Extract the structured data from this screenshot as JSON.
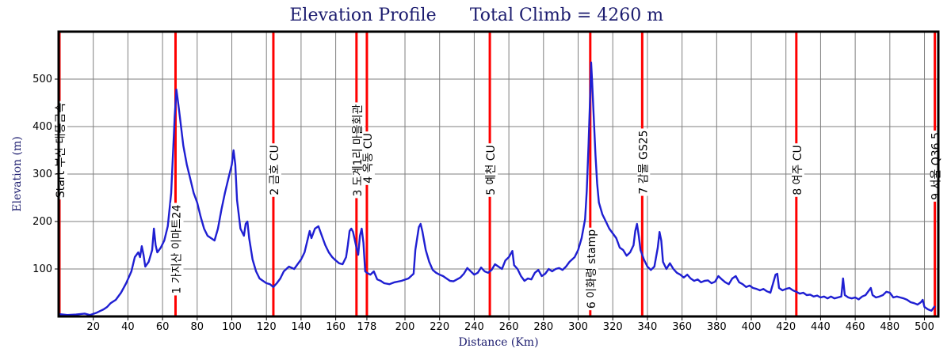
{
  "chart_data": {
    "type": "line",
    "title": "Elevation Profile",
    "subtitle": "Total Climb = 4260 m",
    "xlabel": "Distance (Km)",
    "ylabel": "Elevation (m)",
    "xlim": [
      0,
      508
    ],
    "ylim": [
      0,
      600
    ],
    "x_ticks": [
      20,
      40,
      60,
      80,
      100,
      120,
      140,
      160,
      178,
      200,
      220,
      240,
      260,
      280,
      300,
      320,
      340,
      360,
      380,
      400,
      420,
      440,
      460,
      480,
      500
    ],
    "y_ticks": [
      100,
      200,
      300,
      400,
      500
    ],
    "grid": true,
    "colors": {
      "line": "#1f1fd2",
      "checkpoint": "#ff0000",
      "frame": "#000000",
      "grid": "#7f7f7f",
      "title": "#1b1b6e"
    },
    "series": [
      {
        "values": [
          [
            0,
            5
          ],
          [
            5,
            3
          ],
          [
            10,
            4
          ],
          [
            15,
            6
          ],
          [
            18,
            3
          ],
          [
            22,
            8
          ],
          [
            26,
            15
          ],
          [
            28,
            20
          ],
          [
            30,
            28
          ],
          [
            33,
            35
          ],
          [
            36,
            50
          ],
          [
            39,
            70
          ],
          [
            42,
            95
          ],
          [
            44,
            125
          ],
          [
            46,
            135
          ],
          [
            47,
            125
          ],
          [
            48,
            148
          ],
          [
            49,
            130
          ],
          [
            50,
            105
          ],
          [
            52,
            115
          ],
          [
            54,
            140
          ],
          [
            55,
            185
          ],
          [
            56,
            150
          ],
          [
            57,
            135
          ],
          [
            59,
            145
          ],
          [
            61,
            160
          ],
          [
            63,
            190
          ],
          [
            65,
            260
          ],
          [
            66,
            340
          ],
          [
            67,
            420
          ],
          [
            68,
            478
          ],
          [
            69,
            450
          ],
          [
            70,
            420
          ],
          [
            72,
            360
          ],
          [
            74,
            320
          ],
          [
            76,
            290
          ],
          [
            78,
            260
          ],
          [
            80,
            240
          ],
          [
            82,
            210
          ],
          [
            84,
            185
          ],
          [
            86,
            170
          ],
          [
            88,
            165
          ],
          [
            90,
            160
          ],
          [
            92,
            185
          ],
          [
            94,
            225
          ],
          [
            96,
            260
          ],
          [
            98,
            290
          ],
          [
            100,
            320
          ],
          [
            101,
            350
          ],
          [
            102,
            320
          ],
          [
            103,
            245
          ],
          [
            105,
            185
          ],
          [
            107,
            170
          ],
          [
            108,
            195
          ],
          [
            109,
            200
          ],
          [
            110,
            165
          ],
          [
            112,
            120
          ],
          [
            114,
            95
          ],
          [
            116,
            80
          ],
          [
            118,
            75
          ],
          [
            120,
            70
          ],
          [
            122,
            68
          ],
          [
            124,
            62
          ],
          [
            126,
            70
          ],
          [
            128,
            80
          ],
          [
            130,
            95
          ],
          [
            133,
            105
          ],
          [
            136,
            100
          ],
          [
            138,
            110
          ],
          [
            140,
            120
          ],
          [
            142,
            135
          ],
          [
            144,
            165
          ],
          [
            145,
            180
          ],
          [
            146,
            165
          ],
          [
            148,
            185
          ],
          [
            150,
            190
          ],
          [
            152,
            170
          ],
          [
            154,
            150
          ],
          [
            156,
            135
          ],
          [
            158,
            125
          ],
          [
            160,
            118
          ],
          [
            162,
            112
          ],
          [
            164,
            110
          ],
          [
            166,
            125
          ],
          [
            167,
            150
          ],
          [
            168,
            180
          ],
          [
            169,
            185
          ],
          [
            170,
            178
          ],
          [
            172,
            145
          ],
          [
            173,
            130
          ],
          [
            174,
            170
          ],
          [
            175,
            185
          ],
          [
            176,
            155
          ],
          [
            177,
            95
          ],
          [
            178,
            92
          ],
          [
            180,
            88
          ],
          [
            182,
            95
          ],
          [
            184,
            78
          ],
          [
            186,
            75
          ],
          [
            188,
            70
          ],
          [
            191,
            68
          ],
          [
            194,
            72
          ],
          [
            198,
            75
          ],
          [
            202,
            80
          ],
          [
            205,
            90
          ],
          [
            206,
            140
          ],
          [
            208,
            188
          ],
          [
            209,
            195
          ],
          [
            210,
            180
          ],
          [
            212,
            140
          ],
          [
            214,
            115
          ],
          [
            216,
            98
          ],
          [
            218,
            92
          ],
          [
            220,
            88
          ],
          [
            222,
            85
          ],
          [
            224,
            80
          ],
          [
            226,
            75
          ],
          [
            228,
            74
          ],
          [
            230,
            78
          ],
          [
            232,
            82
          ],
          [
            234,
            90
          ],
          [
            236,
            102
          ],
          [
            238,
            95
          ],
          [
            240,
            88
          ],
          [
            242,
            92
          ],
          [
            244,
            103
          ],
          [
            246,
            95
          ],
          [
            248,
            92
          ],
          [
            250,
            98
          ],
          [
            252,
            110
          ],
          [
            254,
            105
          ],
          [
            256,
            100
          ],
          [
            258,
            118
          ],
          [
            260,
            125
          ],
          [
            262,
            138
          ],
          [
            263,
            108
          ],
          [
            265,
            100
          ],
          [
            267,
            85
          ],
          [
            269,
            75
          ],
          [
            271,
            80
          ],
          [
            273,
            78
          ],
          [
            275,
            92
          ],
          [
            277,
            98
          ],
          [
            279,
            85
          ],
          [
            281,
            90
          ],
          [
            283,
            100
          ],
          [
            285,
            95
          ],
          [
            287,
            100
          ],
          [
            289,
            102
          ],
          [
            291,
            98
          ],
          [
            293,
            105
          ],
          [
            295,
            115
          ],
          [
            298,
            125
          ],
          [
            300,
            140
          ],
          [
            302,
            165
          ],
          [
            304,
            205
          ],
          [
            305,
            265
          ],
          [
            306,
            360
          ],
          [
            307,
            470
          ],
          [
            307.5,
            535
          ],
          [
            308,
            500
          ],
          [
            309,
            420
          ],
          [
            310,
            340
          ],
          [
            311,
            280
          ],
          [
            312,
            240
          ],
          [
            314,
            215
          ],
          [
            316,
            200
          ],
          [
            318,
            185
          ],
          [
            320,
            175
          ],
          [
            322,
            165
          ],
          [
            324,
            145
          ],
          [
            326,
            140
          ],
          [
            328,
            128
          ],
          [
            330,
            135
          ],
          [
            332,
            150
          ],
          [
            333,
            180
          ],
          [
            334,
            195
          ],
          [
            335,
            170
          ],
          [
            336,
            140
          ],
          [
            338,
            120
          ],
          [
            340,
            105
          ],
          [
            342,
            98
          ],
          [
            344,
            105
          ],
          [
            346,
            145
          ],
          [
            347,
            178
          ],
          [
            348,
            160
          ],
          [
            349,
            115
          ],
          [
            351,
            100
          ],
          [
            353,
            112
          ],
          [
            355,
            100
          ],
          [
            357,
            92
          ],
          [
            359,
            88
          ],
          [
            361,
            82
          ],
          [
            363,
            88
          ],
          [
            365,
            80
          ],
          [
            367,
            75
          ],
          [
            369,
            78
          ],
          [
            371,
            72
          ],
          [
            373,
            75
          ],
          [
            375,
            76
          ],
          [
            377,
            70
          ],
          [
            379,
            73
          ],
          [
            381,
            85
          ],
          [
            383,
            78
          ],
          [
            385,
            72
          ],
          [
            387,
            68
          ],
          [
            389,
            80
          ],
          [
            391,
            85
          ],
          [
            393,
            72
          ],
          [
            395,
            68
          ],
          [
            397,
            62
          ],
          [
            399,
            65
          ],
          [
            401,
            60
          ],
          [
            403,
            58
          ],
          [
            405,
            55
          ],
          [
            407,
            58
          ],
          [
            409,
            53
          ],
          [
            411,
            50
          ],
          [
            413,
            75
          ],
          [
            414,
            88
          ],
          [
            415,
            90
          ],
          [
            416,
            60
          ],
          [
            418,
            55
          ],
          [
            420,
            58
          ],
          [
            422,
            60
          ],
          [
            424,
            55
          ],
          [
            426,
            52
          ],
          [
            428,
            48
          ],
          [
            430,
            50
          ],
          [
            432,
            45
          ],
          [
            434,
            46
          ],
          [
            436,
            42
          ],
          [
            438,
            44
          ],
          [
            440,
            40
          ],
          [
            442,
            42
          ],
          [
            444,
            38
          ],
          [
            446,
            42
          ],
          [
            448,
            38
          ],
          [
            450,
            40
          ],
          [
            452,
            42
          ],
          [
            453,
            80
          ],
          [
            454,
            45
          ],
          [
            456,
            40
          ],
          [
            458,
            38
          ],
          [
            460,
            40
          ],
          [
            462,
            36
          ],
          [
            464,
            42
          ],
          [
            466,
            45
          ],
          [
            468,
            55
          ],
          [
            469,
            60
          ],
          [
            470,
            45
          ],
          [
            472,
            40
          ],
          [
            474,
            42
          ],
          [
            476,
            45
          ],
          [
            478,
            52
          ],
          [
            480,
            50
          ],
          [
            482,
            40
          ],
          [
            484,
            42
          ],
          [
            486,
            40
          ],
          [
            488,
            38
          ],
          [
            490,
            35
          ],
          [
            492,
            30
          ],
          [
            494,
            28
          ],
          [
            496,
            25
          ],
          [
            498,
            30
          ],
          [
            499,
            35
          ],
          [
            500,
            20
          ],
          [
            502,
            15
          ],
          [
            504,
            12
          ],
          [
            506,
            22
          ]
        ]
      }
    ],
    "checkpoints": [
      {
        "x": 0,
        "label": "Start 부산 대동금속",
        "label_center_y": 190
      },
      {
        "x": 67.5,
        "label": "1 가지산 이마트24",
        "label_center_y": 315
      },
      {
        "x": 124,
        "label": "2 금호 CU",
        "label_center_y": 215
      },
      {
        "x": 172,
        "label": "3 도계1리 마을회관",
        "label_center_y": 190
      },
      {
        "x": 178,
        "label": "4 옥동 CU",
        "label_center_y": 200
      },
      {
        "x": 249,
        "label": "5 예천 CU",
        "label_center_y": 215
      },
      {
        "x": 307,
        "label": "6 이화령 stamp",
        "label_center_y": 340
      },
      {
        "x": 337,
        "label": "7 감물 GS25",
        "label_center_y": 205
      },
      {
        "x": 426,
        "label": "8 여주 CU",
        "label_center_y": 215
      },
      {
        "x": 506,
        "label": "9 서울 Q36.5",
        "label_center_y": 210
      }
    ]
  }
}
